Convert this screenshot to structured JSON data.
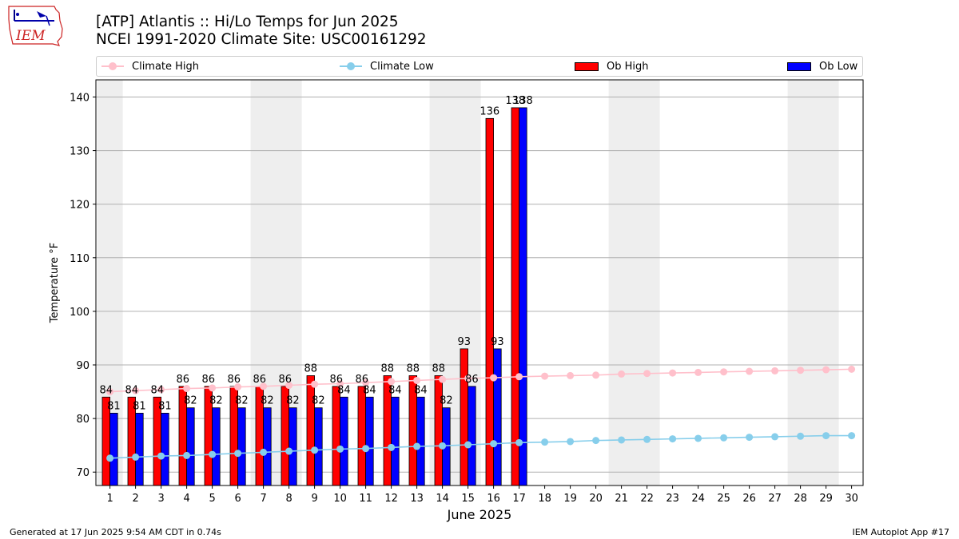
{
  "header": {
    "title_line1": "[ATP] Atlantis :: Hi/Lo Temps for Jun 2025",
    "title_line2": "NCEI 1991-2020 Climate Site: USC00161292"
  },
  "logo": {
    "text": "IEM"
  },
  "legend": {
    "climate_high": "Climate High",
    "climate_low": "Climate Low",
    "ob_high": "Ob High",
    "ob_low": "Ob Low"
  },
  "colors": {
    "climate_high": "#ffc0cb",
    "climate_low": "#87ceeb",
    "ob_high": "#ff0000",
    "ob_low": "#0000ff",
    "weekend_band": "#eeeeee"
  },
  "footer": {
    "left": "Generated at 17 Jun 2025 9:54 AM CDT in 0.74s",
    "right": "IEM Autoplot App #17"
  },
  "chart_data": {
    "type": "bar",
    "xlabel": "June 2025",
    "ylabel": "Temperature °F",
    "ylim": [
      67.5,
      143.2
    ],
    "yticks": [
      70,
      80,
      90,
      100,
      110,
      120,
      130,
      140
    ],
    "days": [
      1,
      2,
      3,
      4,
      5,
      6,
      7,
      8,
      9,
      10,
      11,
      12,
      13,
      14,
      15,
      16,
      17,
      18,
      19,
      20,
      21,
      22,
      23,
      24,
      25,
      26,
      27,
      28,
      29,
      30
    ],
    "grid": "horizontal",
    "weekend_bands": [
      [
        1
      ],
      [
        7,
        8
      ],
      [
        14,
        15
      ],
      [
        21,
        22
      ],
      [
        28,
        29
      ]
    ],
    "series": [
      {
        "name": "Ob High",
        "type": "bar",
        "values": [
          84,
          84,
          84,
          86,
          86,
          86,
          86,
          86,
          88,
          86,
          86,
          88,
          88,
          88,
          93,
          136,
          138
        ]
      },
      {
        "name": "Ob Low",
        "type": "bar",
        "values": [
          81,
          81,
          81,
          82,
          82,
          82,
          82,
          82,
          82,
          84,
          84,
          84,
          84,
          82,
          86,
          93,
          138
        ]
      },
      {
        "name": "Climate High",
        "type": "line",
        "values": [
          85.0,
          85.2,
          85.4,
          85.6,
          85.7,
          85.9,
          86.0,
          86.2,
          86.4,
          86.5,
          86.7,
          86.9,
          87.1,
          87.3,
          87.5,
          87.6,
          87.8,
          87.9,
          88.0,
          88.1,
          88.3,
          88.4,
          88.5,
          88.6,
          88.7,
          88.8,
          88.9,
          89.0,
          89.1,
          89.2
        ]
      },
      {
        "name": "Climate Low",
        "type": "line",
        "values": [
          72.6,
          72.8,
          73.0,
          73.1,
          73.3,
          73.5,
          73.7,
          73.9,
          74.1,
          74.3,
          74.4,
          74.6,
          74.8,
          74.9,
          75.1,
          75.3,
          75.5,
          75.6,
          75.7,
          75.9,
          76.0,
          76.1,
          76.2,
          76.3,
          76.4,
          76.5,
          76.6,
          76.7,
          76.8,
          76.8
        ]
      }
    ]
  }
}
